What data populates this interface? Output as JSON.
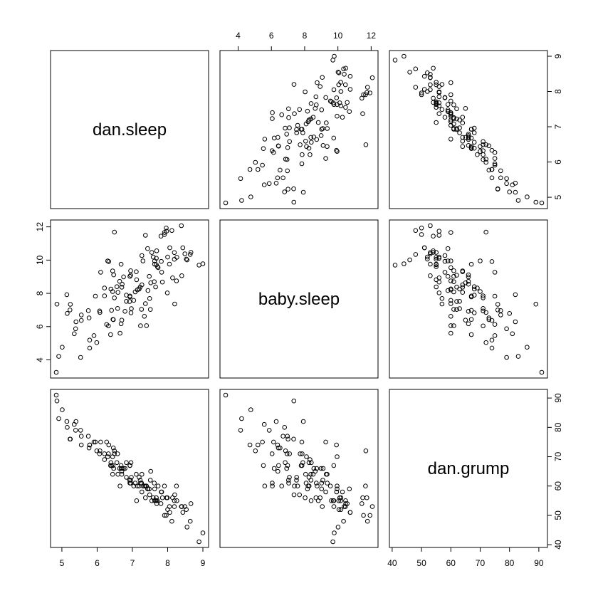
{
  "chart_data": {
    "type": "scatter",
    "variables": [
      "dan.sleep",
      "baby.sleep",
      "dan.grump"
    ],
    "ranges": {
      "dan.sleep": [
        4.84,
        9.0
      ],
      "baby.sleep": [
        3.25,
        12.07
      ],
      "dan.grump": [
        41,
        91
      ]
    },
    "ticks": {
      "dan.sleep": [
        5,
        6,
        7,
        8,
        9
      ],
      "baby.sleep": [
        4,
        6,
        8,
        10,
        12
      ],
      "dan.grump": [
        40,
        50,
        60,
        70,
        80,
        90
      ]
    },
    "observations": [
      [
        7.59,
        10.18,
        56
      ],
      [
        7.91,
        11.66,
        60
      ],
      [
        5.14,
        7.92,
        82
      ],
      [
        7.71,
        9.61,
        55
      ],
      [
        6.68,
        9.75,
        67
      ],
      [
        5.99,
        5.04,
        72
      ],
      [
        8.19,
        10.45,
        53
      ],
      [
        7.19,
        8.27,
        60
      ],
      [
        7.4,
        6.06,
        60
      ],
      [
        6.58,
        7.09,
        71
      ],
      [
        6.49,
        11.68,
        72
      ],
      [
        6.27,
        6.13,
        75
      ],
      [
        5.95,
        7.83,
        75
      ],
      [
        6.65,
        5.6,
        60
      ],
      [
        6.41,
        6.98,
        67
      ],
      [
        7.12,
        8.82,
        55
      ],
      [
        5.39,
        5.87,
        79
      ],
      [
        6.7,
        6.39,
        65
      ],
      [
        8.25,
        8.75,
        60
      ],
      [
        6.92,
        7.51,
        62
      ],
      [
        7.63,
        9.76,
        55
      ],
      [
        7.52,
        8.63,
        65
      ],
      [
        7.82,
        9.92,
        58
      ],
      [
        5.79,
        5.19,
        74
      ],
      [
        5.79,
        4.71,
        74
      ],
      [
        5.91,
        5.46,
        75
      ],
      [
        7.04,
        7.58,
        60
      ],
      [
        5.4,
        6.29,
        82
      ],
      [
        7.14,
        8.21,
        60
      ],
      [
        7.49,
        7.69,
        57
      ],
      [
        6.71,
        8.55,
        66
      ],
      [
        7.99,
        8.03,
        56
      ],
      [
        6.96,
        6.83,
        68
      ],
      [
        7.19,
        8.26,
        63
      ],
      [
        6.07,
        6.94,
        71
      ],
      [
        6.95,
        9.36,
        61
      ],
      [
        7.81,
        11.44,
        54
      ],
      [
        8.06,
        10.74,
        51
      ],
      [
        8.19,
        10.05,
        55
      ],
      [
        6.45,
        6.43,
        67
      ],
      [
        7.63,
        9.95,
        59
      ],
      [
        6.93,
        9.02,
        61
      ],
      [
        7.27,
        8.51,
        64
      ],
      [
        5.23,
        7.0,
        76
      ],
      [
        6.59,
        8.06,
        64
      ],
      [
        7.08,
        8.09,
        61
      ],
      [
        8.64,
        10.34,
        48
      ],
      [
        7.43,
        10.69,
        59
      ],
      [
        8.2,
        7.36,
        57
      ],
      [
        7.11,
        9.3,
        64
      ],
      [
        6.44,
        9.35,
        64
      ],
      [
        6.68,
        6.17,
        66
      ],
      [
        4.86,
        7.35,
        89
      ],
      [
        8.49,
        10.38,
        53
      ],
      [
        6.64,
        8.72,
        66
      ],
      [
        7.97,
        11.74,
        56
      ],
      [
        7.66,
        8.39,
        55
      ],
      [
        6.49,
        7.73,
        71
      ],
      [
        7.85,
        8.68,
        56
      ],
      [
        8.14,
        8.93,
        56
      ],
      [
        5.24,
        7.34,
        76
      ],
      [
        7.55,
        10.46,
        55
      ],
      [
        6.47,
        9.11,
        66
      ],
      [
        7.23,
        6.05,
        61
      ],
      [
        6.75,
        8.99,
        66
      ],
      [
        5.55,
        6.37,
        74
      ],
      [
        7.37,
        11.49,
        56
      ],
      [
        6.56,
        8.4,
        68
      ],
      [
        7.91,
        11.54,
        50
      ],
      [
        6.95,
        9.09,
        62
      ],
      [
        8.05,
        9.76,
        53
      ],
      [
        5.35,
        5.57,
        81
      ],
      [
        7.3,
        9.95,
        60
      ],
      [
        7.27,
        10.27,
        58
      ],
      [
        7.73,
        9.55,
        60
      ],
      [
        8.12,
        11.78,
        48
      ],
      [
        6.38,
        5.52,
        67
      ],
      [
        6.32,
        6.04,
        71
      ],
      [
        4.84,
        3.25,
        91
      ],
      [
        8.0,
        10.18,
        52
      ],
      [
        6.1,
        9.27,
        75
      ],
      [
        6.93,
        7.79,
        67
      ],
      [
        6.46,
        6.42,
        73
      ],
      [
        7.51,
        7.03,
        62
      ],
      [
        7.48,
        9.02,
        59
      ],
      [
        6.21,
        7.85,
        71
      ],
      [
        7.69,
        10.56,
        54
      ],
      [
        7.22,
        8.38,
        62
      ],
      [
        5.01,
        4.76,
        86
      ],
      [
        6.3,
        9.95,
        70
      ],
      [
        8.53,
        10.06,
        52
      ],
      [
        5.15,
        6.79,
        80
      ],
      [
        6.21,
        8.32,
        69
      ],
      [
        7.62,
        8.7,
        61
      ],
      [
        8.89,
        9.7,
        41
      ],
      [
        6.83,
        7.89,
        68
      ],
      [
        6.93,
        7.84,
        67
      ],
      [
        7.26,
        7.04,
        61
      ],
      [
        8.26,
        10.17,
        55
      ],
      [
        7.34,
        6.62,
        60
      ],
      [
        8.39,
        12.07,
        53
      ],
      [
        6.83,
        7.52,
        63
      ],
      [
        5.53,
        4.15,
        79
      ],
      [
        8.66,
        10.47,
        54
      ],
      [
        9.0,
        9.78,
        44
      ],
      [
        8.4,
        9.06,
        53
      ],
      [
        6.7,
        8.37,
        64
      ],
      [
        5.75,
        6.96,
        77
      ],
      [
        6.33,
        9.91,
        74
      ],
      [
        7.96,
        11.93,
        50
      ],
      [
        4.91,
        4.21,
        83
      ],
      [
        7.44,
        8.17,
        59
      ],
      [
        5.77,
        6.52,
        73
      ],
      [
        7.68,
        10.11,
        56
      ],
      [
        6.97,
        7.08,
        63
      ],
      [
        8.55,
        10.01,
        46
      ],
      [
        6.79,
        6.92,
        66
      ],
      [
        7.37,
        7.38,
        60
      ],
      [
        8.43,
        10.74,
        51
      ],
      [
        6.08,
        6.85,
        72
      ],
      [
        7.83,
        9.27,
        58
      ],
      [
        5.55,
        6.7,
        77
      ],
      [
        6.44,
        8.11,
        70
      ],
      [
        7.68,
        9.72,
        55
      ],
      [
        6.39,
        8.26,
        68
      ]
    ]
  }
}
